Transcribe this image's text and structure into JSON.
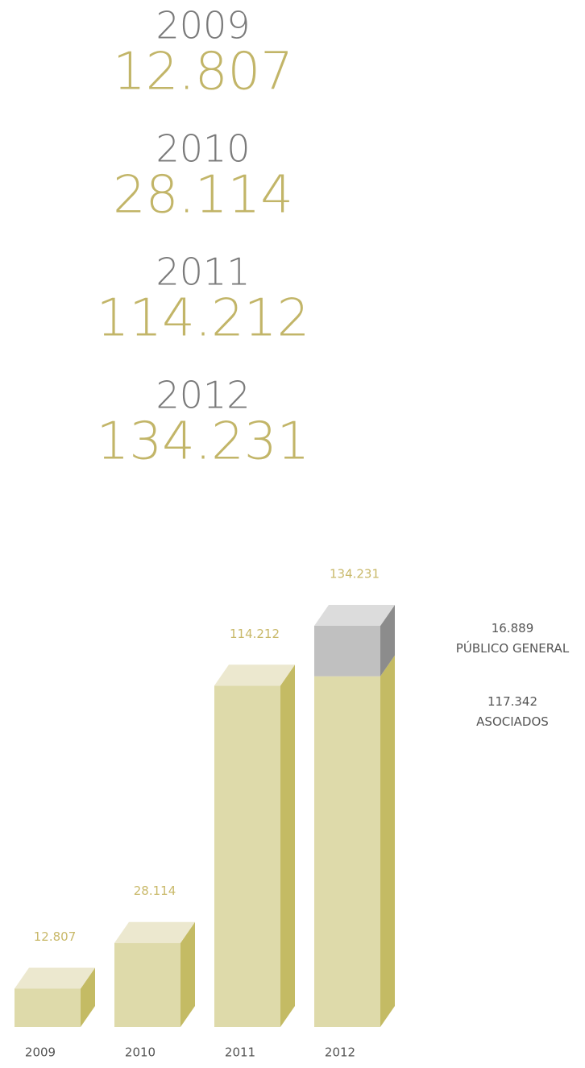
{
  "summary": [
    {
      "year": "2009",
      "value": "12.807"
    },
    {
      "year": "2010",
      "value": "28.114"
    },
    {
      "year": "2011",
      "value": "114.212"
    },
    {
      "year": "2012",
      "value": "134.231"
    }
  ],
  "chart_data": {
    "type": "bar3d-stacked",
    "categories": [
      "2009",
      "2010",
      "2011",
      "2012"
    ],
    "series": [
      {
        "name": "ASOCIADOS",
        "color": "#dedaaa",
        "values": [
          12807,
          28114,
          114212,
          117342
        ],
        "value_labels": [
          "12.807",
          "28.114",
          "114.212",
          "117.342"
        ]
      },
      {
        "name": "PÚBLICO GENERAL",
        "color": "#c0c0c0",
        "values": [
          null,
          null,
          null,
          16889
        ],
        "value_labels": [
          null,
          null,
          null,
          "16.889"
        ]
      }
    ],
    "total_value": 134231,
    "total_label": "134.231"
  }
}
